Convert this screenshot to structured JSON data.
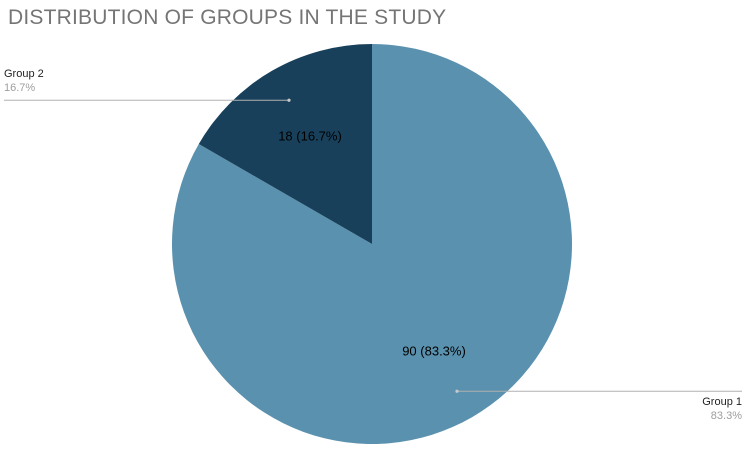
{
  "chart_data": {
    "type": "pie",
    "title": "DISTRIBUTION OF GROUPS IN THE STUDY",
    "slices": [
      {
        "name": "Group 1",
        "value": 90,
        "percent": "83.3%",
        "slice_label": "90 (83.3%)",
        "color": "#5a91ae"
      },
      {
        "name": "Group 2",
        "value": 18,
        "percent": "16.7%",
        "slice_label": "18 (16.7%)",
        "color": "#18405a"
      }
    ],
    "legend_placement": "outside leader lines (Group 2 top-left, Group 1 bottom-right)"
  }
}
